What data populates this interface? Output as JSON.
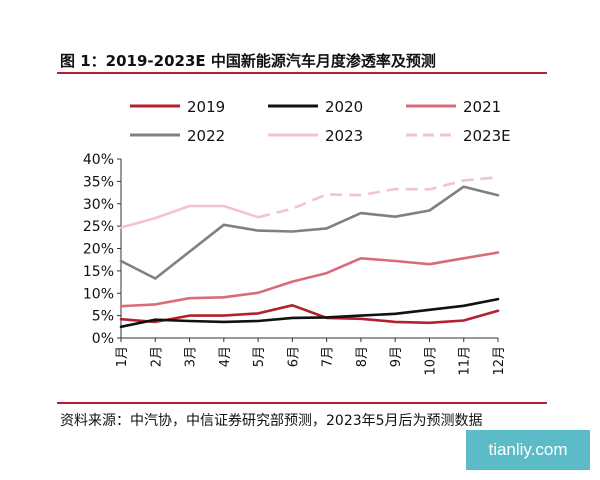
{
  "figure": {
    "title": "图 1：2019-2023E 中国新能源汽车月度渗透率及预测",
    "source": "资料来源：中汽协，中信证券研究部预测，2023年5月后为预测数据",
    "watermark": "tianliy.com",
    "accent_color": "#b3202e"
  },
  "chart_data": {
    "type": "line",
    "title": "2019-2023E 中国新能源汽车月度渗透率及预测",
    "xlabel": "",
    "ylabel": "",
    "categories": [
      "1月",
      "2月",
      "3月",
      "4月",
      "5月",
      "6月",
      "7月",
      "8月",
      "9月",
      "10月",
      "11月",
      "12月"
    ],
    "ylim": [
      0,
      40
    ],
    "yticks": [
      0,
      5,
      10,
      15,
      20,
      25,
      30,
      35,
      40
    ],
    "ytick_labels": [
      "0%",
      "5%",
      "10%",
      "15%",
      "20%",
      "25%",
      "30%",
      "35%",
      "40%"
    ],
    "grid": false,
    "legend_position": "top",
    "series": [
      {
        "name": "2019",
        "color": "#b3202e",
        "dash": "solid",
        "values": [
          4.2,
          3.6,
          5.0,
          5.0,
          5.5,
          7.3,
          4.5,
          4.3,
          3.6,
          3.4,
          3.9,
          6.1
        ]
      },
      {
        "name": "2020",
        "color": "#111111",
        "dash": "solid",
        "values": [
          2.5,
          4.1,
          3.8,
          3.6,
          3.8,
          4.5,
          4.6,
          5.0,
          5.4,
          6.3,
          7.2,
          8.7
        ]
      },
      {
        "name": "2021",
        "color": "#d96b7b",
        "dash": "solid",
        "values": [
          7.1,
          7.5,
          8.9,
          9.1,
          10.1,
          12.6,
          14.5,
          17.8,
          17.2,
          16.5,
          17.8,
          19.1
        ]
      },
      {
        "name": "2022",
        "color": "#808080",
        "dash": "solid",
        "values": [
          17.2,
          13.3,
          null,
          25.3,
          24.0,
          23.8,
          24.5,
          27.9,
          27.1,
          28.5,
          33.8,
          31.9
        ]
      },
      {
        "name": "2023",
        "color": "#f2c4cb",
        "dash": "solid",
        "values": [
          24.7,
          26.8,
          29.5,
          29.5,
          27.0,
          null,
          null,
          null,
          null,
          null,
          null,
          null
        ]
      },
      {
        "name": "2023E",
        "color": "#f2c4cb",
        "dash": "dashed",
        "values": [
          null,
          null,
          null,
          null,
          27.0,
          28.9,
          32.1,
          31.9,
          33.3,
          33.2,
          35.2,
          35.9
        ]
      }
    ]
  }
}
